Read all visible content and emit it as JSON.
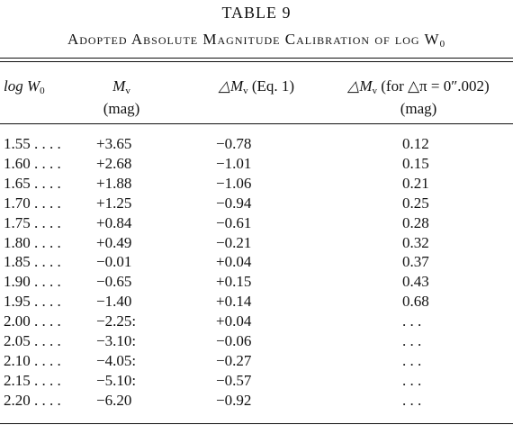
{
  "title": "TABLE 9",
  "caption": {
    "text": "Adopted Absolute Magnitude Calibration of log W",
    "sub": "0"
  },
  "table": {
    "columns": [
      {
        "text": "log W",
        "sub": "0"
      },
      {
        "text": "M",
        "sub": "v",
        "unit": "(mag)"
      },
      {
        "text": "△M",
        "sub": "v",
        "rest": " (Eq. 1)"
      },
      {
        "text": "△M",
        "sub": "v",
        "rest": " (for △π = 0″.002)",
        "unit": "(mag)"
      }
    ],
    "rows": [
      [
        "1.55 . . . .",
        "+3.65",
        "−0.78",
        "0.12"
      ],
      [
        "1.60 . . . .",
        "+2.68",
        "−1.01",
        "0.15"
      ],
      [
        "1.65 . . . .",
        "+1.88",
        "−1.06",
        "0.21"
      ],
      [
        "1.70 . . . .",
        "+1.25",
        "−0.94",
        "0.25"
      ],
      [
        "1.75 . . . .",
        "+0.84",
        "−0.61",
        "0.28"
      ],
      [
        "1.80 . . . .",
        "+0.49",
        "−0.21",
        "0.32"
      ],
      [
        "1.85 . . . .",
        "−0.01",
        "+0.04",
        "0.37"
      ],
      [
        "1.90 . . . .",
        "−0.65",
        "+0.15",
        "0.43"
      ],
      [
        "1.95 . . . .",
        "−1.40",
        "+0.14",
        "0.68"
      ],
      [
        "2.00 . . . .",
        "−2.25:",
        "+0.04",
        ". . ."
      ],
      [
        "2.05 . . . .",
        "−3.10:",
        "−0.06",
        ". . ."
      ],
      [
        "2.10 . . . .",
        "−4.05:",
        "−0.27",
        ". . ."
      ],
      [
        "2.15 . . . .",
        "−5.10:",
        "−0.57",
        ". . ."
      ],
      [
        "2.20 . . . .",
        "−6.20",
        "−0.92",
        ". . ."
      ]
    ]
  }
}
